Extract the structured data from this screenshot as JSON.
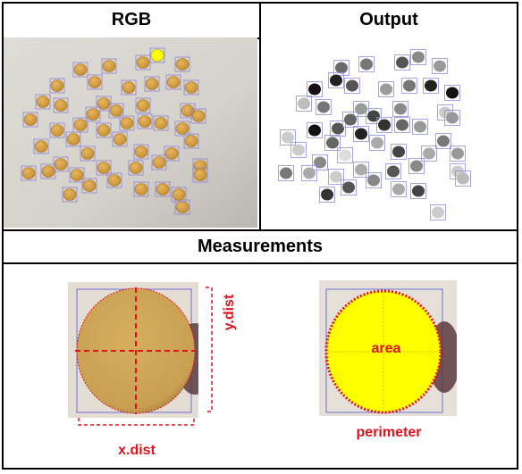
{
  "headers": {
    "rgb": "RGB",
    "output": "Output",
    "measurements": "Measurements"
  },
  "labels": {
    "x_dist": "x.dist",
    "y_dist": "y.dist",
    "area": "area",
    "perimeter": "perimeter"
  },
  "colors": {
    "border": "#000000",
    "annotation_red": "#e0121b",
    "bounding_box_blue": "#6f6fd8",
    "seed_tan": "#d9a54a",
    "area_fill_yellow": "#ffff00",
    "rgb_background": "#d8d6d0"
  }
}
